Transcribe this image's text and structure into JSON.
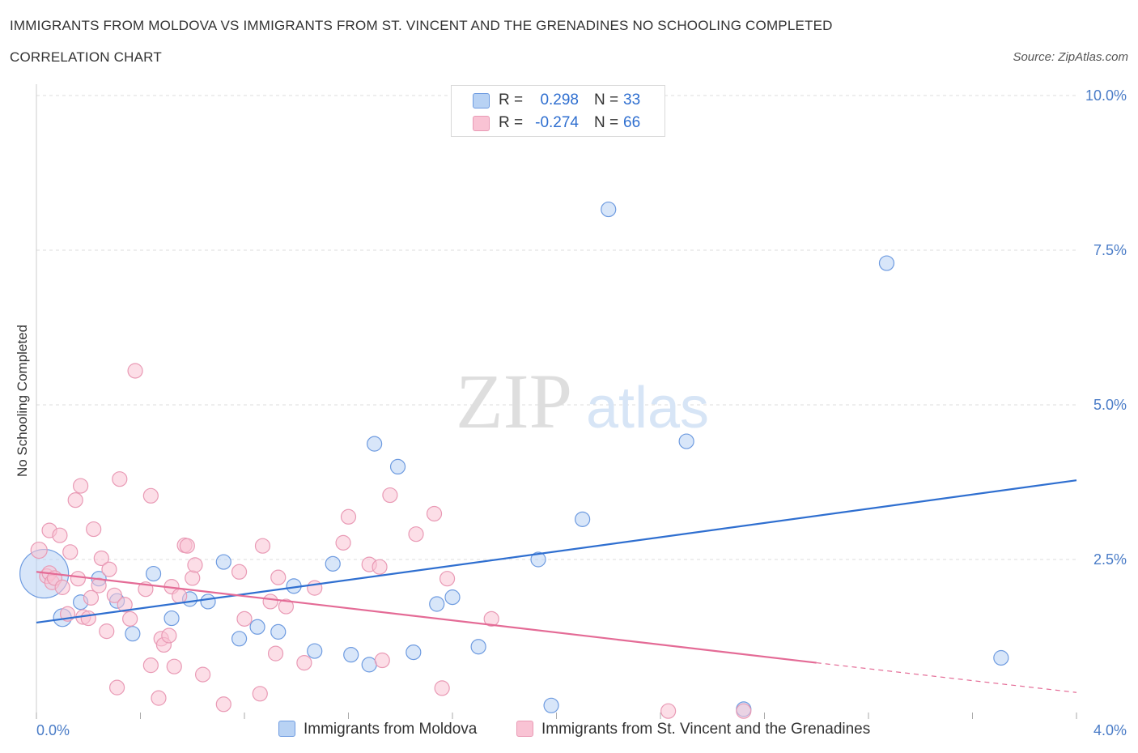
{
  "header": {
    "title": "IMMIGRANTS FROM MOLDOVA VS IMMIGRANTS FROM ST. VINCENT AND THE GRENADINES NO SCHOOLING COMPLETED",
    "subtitle": "CORRELATION CHART",
    "source": "Source: ZipAtlas.com"
  },
  "watermark": {
    "zip": "ZIP",
    "atlas": "atlas"
  },
  "colors": {
    "moldova": "#2f6fd0",
    "moldova_fill": "#b8d2f4",
    "stvincent": "#e46b96",
    "stvincent_fill": "#f9c3d4",
    "axis_label": "#4a7cc7",
    "grid": "#dddddd"
  },
  "legend_top": {
    "rows": [
      {
        "r_label": "R =",
        "r_value": "0.298",
        "n_label": "N =",
        "n_value": "33"
      },
      {
        "r_label": "R =",
        "r_value": "-0.274",
        "n_label": "N =",
        "n_value": "66"
      }
    ]
  },
  "bottom_legend": {
    "moldova": "Immigrants from Moldova",
    "stvincent": "Immigrants from St. Vincent and the Grenadines"
  },
  "chart_data": {
    "type": "scatter",
    "title": "IMMIGRANTS FROM MOLDOVA VS IMMIGRANTS FROM ST. VINCENT AND THE GRENADINES NO SCHOOLING COMPLETED",
    "subtitle": "CORRELATION CHART",
    "xlabel": "",
    "ylabel": "No Schooling Completed",
    "xlim": [
      0.0,
      4.0
    ],
    "ylim": [
      0.0,
      10.0
    ],
    "x_tick_labels": [
      {
        "value": 0.0,
        "label": "0.0%"
      },
      {
        "value": 4.0,
        "label": "4.0%"
      }
    ],
    "y_tick_labels": [
      {
        "value": 2.5,
        "label": "2.5%"
      },
      {
        "value": 5.0,
        "label": "5.0%"
      },
      {
        "value": 7.5,
        "label": "7.5%"
      },
      {
        "value": 10.0,
        "label": "10.0%"
      }
    ],
    "grid": true,
    "legend_position": "top-center",
    "series": [
      {
        "name": "Immigrants from Moldova",
        "color": "#2f6fd0",
        "r": 0.298,
        "n": 33,
        "trend": {
          "x0": 0.0,
          "y0": 1.48,
          "x1": 4.0,
          "y1": 3.78
        },
        "points": [
          [
            0.03,
            2.27,
            30
          ],
          [
            0.1,
            1.56,
            11
          ],
          [
            0.17,
            1.81,
            9
          ],
          [
            0.24,
            2.19,
            9
          ],
          [
            0.31,
            1.83,
            9
          ],
          [
            0.37,
            1.3,
            9
          ],
          [
            0.45,
            2.27,
            9
          ],
          [
            0.52,
            1.55,
            9
          ],
          [
            0.59,
            1.86,
            9
          ],
          [
            0.66,
            1.82,
            9
          ],
          [
            0.72,
            2.46,
            9
          ],
          [
            0.78,
            1.22,
            9
          ],
          [
            0.85,
            1.41,
            9
          ],
          [
            0.93,
            1.33,
            9
          ],
          [
            0.99,
            2.07,
            9
          ],
          [
            1.07,
            1.02,
            9
          ],
          [
            1.14,
            2.43,
            9
          ],
          [
            1.21,
            0.96,
            9
          ],
          [
            1.28,
            0.8,
            9
          ],
          [
            1.3,
            4.37,
            9
          ],
          [
            1.39,
            4.0,
            9
          ],
          [
            1.45,
            1.0,
            9
          ],
          [
            1.54,
            1.78,
            9
          ],
          [
            1.6,
            1.89,
            9
          ],
          [
            1.7,
            1.09,
            9
          ],
          [
            1.93,
            2.5,
            9
          ],
          [
            1.98,
            0.14,
            9
          ],
          [
            2.1,
            3.15,
            9
          ],
          [
            2.2,
            8.16,
            9
          ],
          [
            2.5,
            4.41,
            9
          ],
          [
            2.72,
            0.08,
            9
          ],
          [
            3.27,
            7.29,
            9
          ],
          [
            3.71,
            0.91,
            9
          ]
        ]
      },
      {
        "name": "Immigrants from St. Vincent and the Grenadines",
        "color": "#e46b96",
        "r": -0.274,
        "n": 66,
        "trend": {
          "x0": 0.0,
          "y0": 2.3,
          "x1": 3.0,
          "y1": 0.83
        },
        "trend_dashed": {
          "x0": 3.0,
          "y0": 0.83,
          "x1": 4.0,
          "y1": 0.35
        },
        "points": [
          [
            0.01,
            2.65,
            10
          ],
          [
            0.04,
            2.23,
            9
          ],
          [
            0.05,
            2.28,
            9
          ],
          [
            0.05,
            2.97,
            9
          ],
          [
            0.06,
            2.13,
            9
          ],
          [
            0.07,
            2.2,
            9
          ],
          [
            0.09,
            2.89,
            9
          ],
          [
            0.1,
            2.05,
            9
          ],
          [
            0.12,
            1.62,
            9
          ],
          [
            0.13,
            2.62,
            9
          ],
          [
            0.15,
            3.46,
            9
          ],
          [
            0.16,
            2.19,
            9
          ],
          [
            0.17,
            3.69,
            9
          ],
          [
            0.18,
            1.57,
            9
          ],
          [
            0.2,
            1.55,
            9
          ],
          [
            0.21,
            1.88,
            9
          ],
          [
            0.22,
            2.99,
            9
          ],
          [
            0.24,
            2.08,
            9
          ],
          [
            0.25,
            2.52,
            9
          ],
          [
            0.27,
            1.34,
            9
          ],
          [
            0.28,
            2.34,
            9
          ],
          [
            0.3,
            1.92,
            9
          ],
          [
            0.31,
            0.43,
            9
          ],
          [
            0.32,
            3.8,
            9
          ],
          [
            0.34,
            1.77,
            9
          ],
          [
            0.36,
            1.54,
            9
          ],
          [
            0.38,
            5.55,
            9
          ],
          [
            0.42,
            2.02,
            9
          ],
          [
            0.44,
            0.79,
            9
          ],
          [
            0.44,
            3.53,
            9
          ],
          [
            0.47,
            0.26,
            9
          ],
          [
            0.48,
            1.22,
            9
          ],
          [
            0.49,
            1.12,
            9
          ],
          [
            0.51,
            1.27,
            9
          ],
          [
            0.52,
            2.06,
            9
          ],
          [
            0.53,
            0.77,
            9
          ],
          [
            0.55,
            1.91,
            9
          ],
          [
            0.57,
            2.73,
            9
          ],
          [
            0.58,
            2.72,
            9
          ],
          [
            0.6,
            2.2,
            9
          ],
          [
            0.61,
            2.41,
            9
          ],
          [
            0.64,
            0.64,
            9
          ],
          [
            0.72,
            0.16,
            9
          ],
          [
            0.78,
            2.3,
            9
          ],
          [
            0.8,
            1.54,
            9
          ],
          [
            0.86,
            0.33,
            9
          ],
          [
            0.87,
            2.72,
            9
          ],
          [
            0.9,
            1.82,
            9
          ],
          [
            0.92,
            0.98,
            9
          ],
          [
            0.93,
            2.21,
            9
          ],
          [
            0.96,
            1.74,
            9
          ],
          [
            1.03,
            0.83,
            9
          ],
          [
            1.07,
            2.04,
            9
          ],
          [
            1.18,
            2.77,
            9
          ],
          [
            1.2,
            3.19,
            9
          ],
          [
            1.28,
            2.42,
            9
          ],
          [
            1.32,
            2.38,
            9
          ],
          [
            1.33,
            0.87,
            9
          ],
          [
            1.36,
            3.54,
            9
          ],
          [
            1.46,
            2.91,
            9
          ],
          [
            1.53,
            3.24,
            9
          ],
          [
            1.56,
            0.42,
            9
          ],
          [
            1.58,
            2.19,
            9
          ],
          [
            1.75,
            1.54,
            9
          ],
          [
            2.43,
            0.05,
            9
          ],
          [
            2.72,
            0.05,
            9
          ]
        ]
      }
    ]
  }
}
